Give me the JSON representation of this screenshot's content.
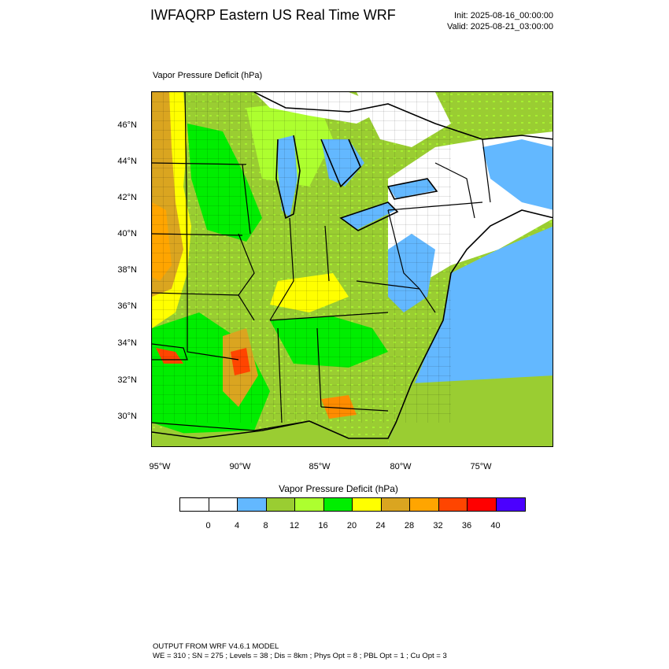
{
  "header": {
    "title": "IWFAQRP Eastern US Real Time WRF",
    "init": "Init: 2025-08-16_00:00:00",
    "valid": "Valid: 2025-08-21_03:00:00"
  },
  "plot": {
    "label": "Vapor Pressure Deficit   (hPa)"
  },
  "map": {
    "lat_labels": [
      "46°N",
      "44°N",
      "42°N",
      "40°N",
      "38°N",
      "36°N",
      "34°N",
      "32°N",
      "30°N"
    ],
    "lon_labels": [
      "95°W",
      "90°W",
      "85°W",
      "80°W",
      "75°W"
    ]
  },
  "colorbar": {
    "title": "Vapor Pressure Deficit  (hPa)",
    "colors": [
      "#ffffff",
      "#ffffff",
      "#63b8ff",
      "#9acd32",
      "#adff2f",
      "#00ee00",
      "#ffff00",
      "#daa520",
      "#ffa500",
      "#ff4500",
      "#ff0000",
      "#4b00ff"
    ],
    "ticks": [
      "0",
      "4",
      "8",
      "12",
      "16",
      "20",
      "24",
      "28",
      "32",
      "36",
      "40"
    ]
  },
  "footer": {
    "line1": "OUTPUT FROM WRF V4.6.1 MODEL",
    "line2": "WE = 310 ; SN = 275 ; Levels = 38 ; Dis = 8km ; Phys Opt = 8 ; PBL Opt = 1 ; Cu Opt = 3"
  }
}
